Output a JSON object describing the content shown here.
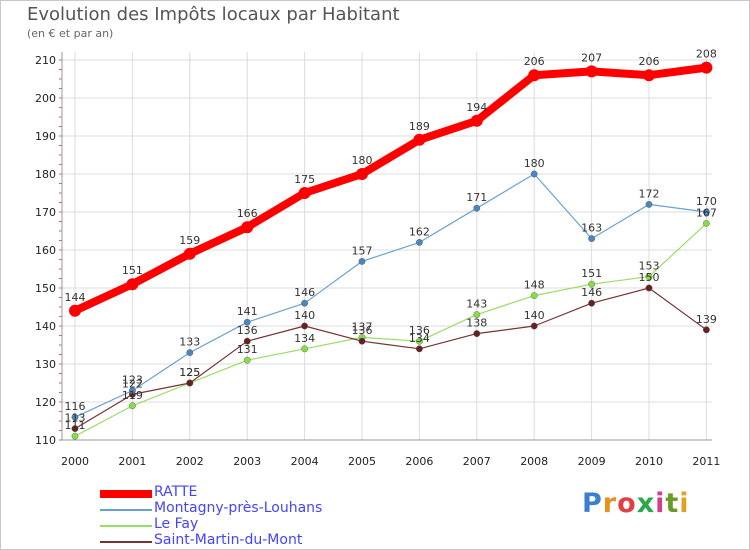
{
  "chart_data": {
    "type": "line",
    "title": "Evolution des Impôts locaux par Habitant",
    "subtitle": "(en € et par an)",
    "x": [
      "2000",
      "2001",
      "2002",
      "2003",
      "2004",
      "2005",
      "2006",
      "2007",
      "2008",
      "2009",
      "2010",
      "2011"
    ],
    "ylim": [
      110,
      210
    ],
    "yticks": [
      110,
      120,
      130,
      140,
      150,
      160,
      170,
      180,
      190,
      200,
      210
    ],
    "grid": true,
    "series": [
      {
        "name": "RATTE",
        "color": "#ff0000",
        "values": [
          144,
          151,
          159,
          166,
          175,
          180,
          189,
          194,
          206,
          207,
          206,
          208
        ]
      },
      {
        "name": "Montagny-près-Louhans",
        "color": "#6aa2cd",
        "values": [
          116,
          123,
          133,
          141,
          146,
          157,
          162,
          171,
          180,
          163,
          172,
          170
        ]
      },
      {
        "name": "Le Fay",
        "color": "#99dd66",
        "values": [
          111,
          119,
          125,
          131,
          134,
          137,
          136,
          143,
          148,
          151,
          153,
          167
        ]
      },
      {
        "name": "Saint-Martin-du-Mont",
        "color": "#773333",
        "values": [
          113,
          122,
          125,
          136,
          140,
          136,
          134,
          138,
          140,
          146,
          150,
          139
        ]
      }
    ]
  },
  "brand": {
    "letters": [
      "P",
      "r",
      "o",
      "x",
      "i",
      "t",
      "i"
    ],
    "colors": [
      "#3a7fd0",
      "#e89020",
      "#e04040",
      "#2aa84a",
      "#d04090",
      "#6a9a2a",
      "#e0a020"
    ]
  }
}
